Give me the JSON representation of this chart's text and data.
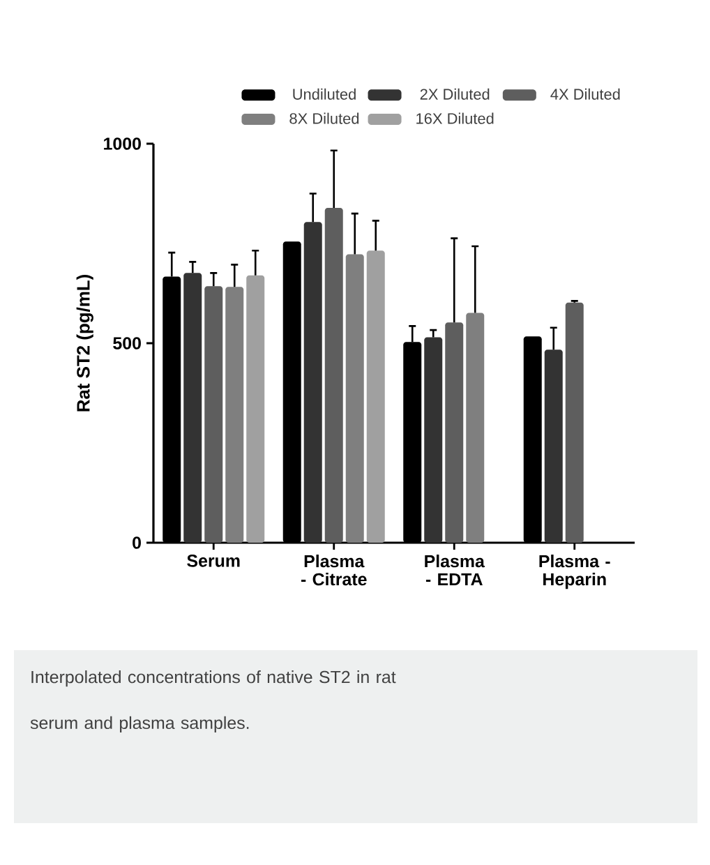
{
  "chart_data": {
    "type": "bar",
    "ylabel": "Rat ST2 (pg/mL)",
    "categories": [
      "Serum",
      "Plasma - Citrate",
      "Plasma - EDTA",
      "Plasma - Heparin"
    ],
    "series": [
      {
        "name": "Undiluted",
        "color": "#000000",
        "values": [
          667,
          755,
          503,
          517
        ],
        "errors": [
          60,
          null,
          40,
          null
        ]
      },
      {
        "name": "2X Diluted",
        "color": "#333333",
        "values": [
          676,
          804,
          515,
          484
        ],
        "errors": [
          28,
          71,
          18,
          55
        ]
      },
      {
        "name": "4X Diluted",
        "color": "#5e5e5e",
        "values": [
          643,
          839,
          552,
          602
        ],
        "errors": [
          33,
          144,
          211,
          4
        ]
      },
      {
        "name": "8X Diluted",
        "color": "#7f7f7f",
        "values": [
          641,
          723,
          576,
          null
        ],
        "errors": [
          56,
          102,
          167,
          null
        ]
      },
      {
        "name": "16X Diluted",
        "color": "#a0a0a0",
        "values": [
          670,
          732,
          null,
          null
        ],
        "errors": [
          62,
          75,
          null,
          null
        ]
      }
    ],
    "ylim": [
      0,
      1000
    ],
    "yticks": [
      0,
      500,
      1000
    ],
    "legend": "top",
    "annotations": [
      "Interpolated concentrations of native ST2 in rat serum and plasma samples."
    ]
  }
}
